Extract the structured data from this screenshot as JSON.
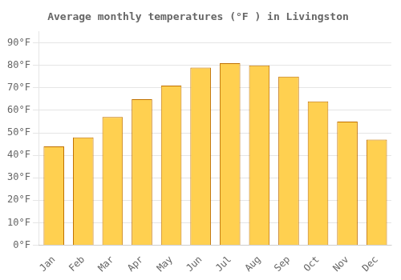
{
  "chart_data": {
    "type": "bar",
    "title": "Average monthly temperatures (°F ) in Livingston",
    "categories": [
      "Jan",
      "Feb",
      "Mar",
      "Apr",
      "May",
      "Jun",
      "Jul",
      "Aug",
      "Sep",
      "Oct",
      "Nov",
      "Dec"
    ],
    "values": [
      44,
      48,
      57,
      65,
      71,
      79,
      81,
      80,
      75,
      64,
      55,
      47
    ],
    "color": "#FFD050",
    "ylim": [
      0,
      95
    ],
    "yticks": [
      {
        "value": 0,
        "label": "0°F"
      },
      {
        "value": 10,
        "label": "10°F"
      },
      {
        "value": 20,
        "label": "20°F"
      },
      {
        "value": 30,
        "label": "30°F"
      },
      {
        "value": 40,
        "label": "40°F"
      },
      {
        "value": 50,
        "label": "50°F"
      },
      {
        "value": 60,
        "label": "60°F"
      },
      {
        "value": 70,
        "label": "70°F"
      },
      {
        "value": 80,
        "label": "80°F"
      },
      {
        "value": 90,
        "label": "90°F"
      }
    ],
    "grid": true
  }
}
